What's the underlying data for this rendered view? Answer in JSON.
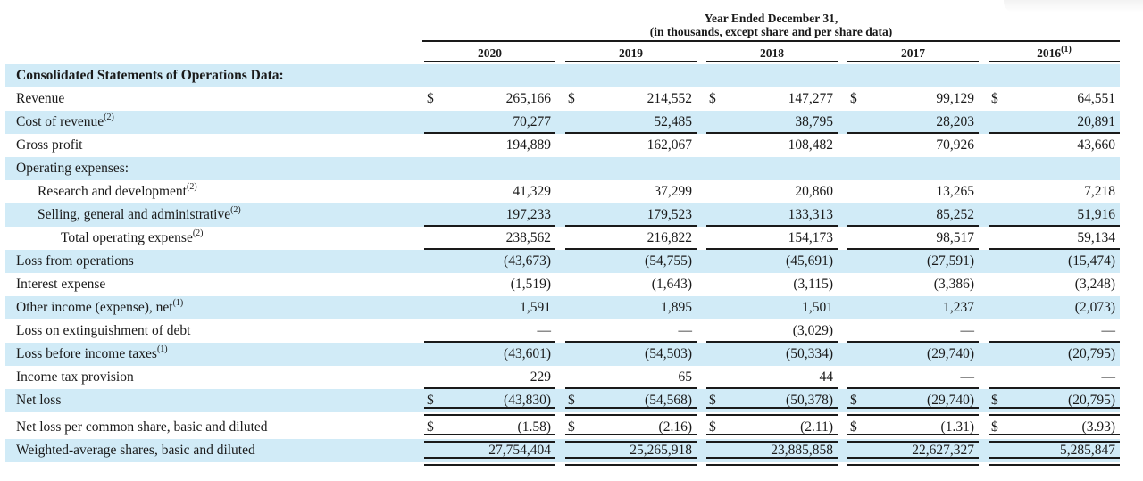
{
  "header": {
    "period_line1": "Year Ended December 31,",
    "period_line2": "(in thousands, except share and per share data)",
    "year_columns": [
      {
        "label": "2020",
        "sup": ""
      },
      {
        "label": "2019",
        "sup": ""
      },
      {
        "label": "2018",
        "sup": ""
      },
      {
        "label": "2017",
        "sup": ""
      },
      {
        "label": "2016",
        "sup": "(1)"
      }
    ]
  },
  "table": {
    "currency_symbol": "$",
    "rows": [
      {
        "label": "Consolidated Statements of Operations Data:",
        "sup": "",
        "bold": true,
        "shaded": true,
        "indent": 0,
        "dollar": false,
        "border": "none",
        "values": [
          "",
          "",
          "",
          "",
          ""
        ]
      },
      {
        "label": "Revenue",
        "sup": "",
        "bold": false,
        "shaded": false,
        "indent": 0,
        "dollar": true,
        "border": "none",
        "values": [
          "265,166",
          "214,552",
          "147,277",
          "99,129",
          "64,551"
        ]
      },
      {
        "label": "Cost of revenue",
        "sup": "(2)",
        "bold": false,
        "shaded": true,
        "indent": 0,
        "dollar": false,
        "border": "single",
        "values": [
          "70,277",
          "52,485",
          "38,795",
          "28,203",
          "20,891"
        ]
      },
      {
        "label": "Gross profit",
        "sup": "",
        "bold": false,
        "shaded": false,
        "indent": 0,
        "dollar": false,
        "border": "none",
        "values": [
          "194,889",
          "162,067",
          "108,482",
          "70,926",
          "43,660"
        ]
      },
      {
        "label": "Operating expenses:",
        "sup": "",
        "bold": false,
        "shaded": true,
        "indent": 0,
        "dollar": false,
        "border": "none",
        "values": [
          "",
          "",
          "",
          "",
          ""
        ]
      },
      {
        "label": "Research and development",
        "sup": "(2)",
        "bold": false,
        "shaded": false,
        "indent": 1,
        "dollar": false,
        "border": "none",
        "values": [
          "41,329",
          "37,299",
          "20,860",
          "13,265",
          "7,218"
        ]
      },
      {
        "label": "Selling, general and administrative",
        "sup": "(2)",
        "bold": false,
        "shaded": true,
        "indent": 1,
        "dollar": false,
        "border": "single",
        "values": [
          "197,233",
          "179,523",
          "133,313",
          "85,252",
          "51,916"
        ]
      },
      {
        "label": "Total operating expense",
        "sup": "(2)",
        "bold": false,
        "shaded": false,
        "indent": 2,
        "dollar": false,
        "border": "single",
        "values": [
          "238,562",
          "216,822",
          "154,173",
          "98,517",
          "59,134"
        ]
      },
      {
        "label": "Loss from operations",
        "sup": "",
        "bold": false,
        "shaded": true,
        "indent": 0,
        "dollar": false,
        "border": "none",
        "values": [
          "(43,673)",
          "(54,755)",
          "(45,691)",
          "(27,591)",
          "(15,474)"
        ]
      },
      {
        "label": "Interest expense",
        "sup": "",
        "bold": false,
        "shaded": false,
        "indent": 0,
        "dollar": false,
        "border": "none",
        "values": [
          "(1,519)",
          "(1,643)",
          "(3,115)",
          "(3,386)",
          "(3,248)"
        ]
      },
      {
        "label": "Other income (expense), net",
        "sup": "(1)",
        "bold": false,
        "shaded": true,
        "indent": 0,
        "dollar": false,
        "border": "none",
        "values": [
          "1,591",
          "1,895",
          "1,501",
          "1,237",
          "(2,073)"
        ]
      },
      {
        "label": "Loss on extinguishment of debt",
        "sup": "",
        "bold": false,
        "shaded": false,
        "indent": 0,
        "dollar": false,
        "border": "single",
        "values": [
          "—",
          "—",
          "(3,029)",
          "—",
          "—"
        ]
      },
      {
        "label": "Loss before income taxes",
        "sup": "(1)",
        "bold": false,
        "shaded": true,
        "indent": 0,
        "dollar": false,
        "border": "none",
        "values": [
          "(43,601)",
          "(54,503)",
          "(50,334)",
          "(29,740)",
          "(20,795)"
        ]
      },
      {
        "label": "Income tax provision",
        "sup": "",
        "bold": false,
        "shaded": false,
        "indent": 0,
        "dollar": false,
        "border": "single",
        "values": [
          "229",
          "65",
          "44",
          "—",
          "—"
        ]
      },
      {
        "label": "Net loss",
        "sup": "",
        "bold": false,
        "shaded": true,
        "indent": 0,
        "dollar": true,
        "border": "double",
        "values": [
          "(43,830)",
          "(54,568)",
          "(50,378)",
          "(29,740)",
          "(20,795)"
        ]
      },
      {
        "label": "Net loss per common share, basic and diluted",
        "sup": "",
        "bold": false,
        "shaded": false,
        "indent": 0,
        "dollar": true,
        "border": "double",
        "gap_above": true,
        "values": [
          "(1.58)",
          "(2.16)",
          "(2.11)",
          "(1.31)",
          "(3.93)"
        ]
      },
      {
        "label": "Weighted-average shares, basic and diluted",
        "sup": "",
        "bold": false,
        "shaded": true,
        "indent": 0,
        "dollar": false,
        "border": "double",
        "values": [
          "27,754,404",
          "25,265,918",
          "23,885,858",
          "22,627,327",
          "5,285,847"
        ]
      }
    ]
  },
  "colors": {
    "highlight": "#d1ebf7",
    "rule": "#1a1a1a",
    "text": "#1a1a1a",
    "background": "#ffffff"
  }
}
